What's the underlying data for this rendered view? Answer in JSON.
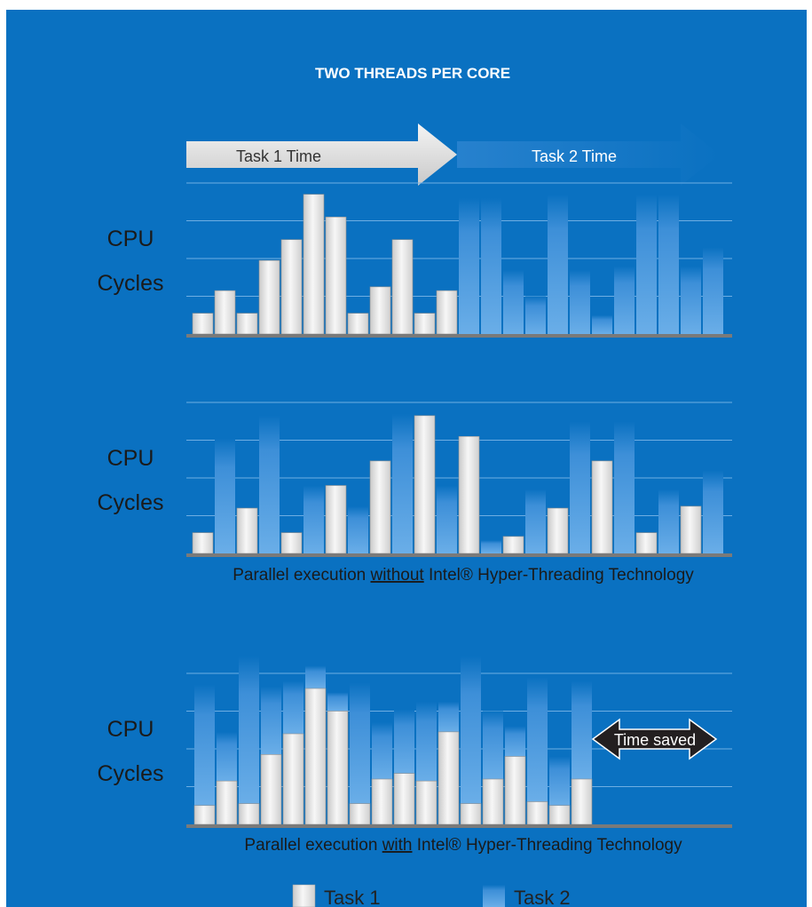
{
  "title": "TWO THREADS PER CORE",
  "colors": {
    "background": "#0a71c1",
    "task1_bar": "#e6e6e6",
    "task2_bar": "#4f9be0",
    "axis": "#7a7a7a",
    "gridline": "#6eaee3",
    "time_saved_arrow": "#231f20"
  },
  "legend": {
    "task1": "Task 1",
    "task2": "Task 2"
  },
  "chart_data": [
    {
      "type": "bar",
      "name": "sequential",
      "ylabel": [
        "CPU",
        "Cycles"
      ],
      "caption": null,
      "header_arrows": {
        "task1": "Task 1 Time",
        "task2": "Task 2 Time"
      },
      "ylim": [
        0,
        5
      ],
      "bars": [
        {
          "task": 1,
          "value": 0.55
        },
        {
          "task": 1,
          "value": 1.15
        },
        {
          "task": 1,
          "value": 0.55
        },
        {
          "task": 1,
          "value": 1.95
        },
        {
          "task": 1,
          "value": 2.5
        },
        {
          "task": 1,
          "value": 3.7
        },
        {
          "task": 1,
          "value": 3.1
        },
        {
          "task": 1,
          "value": 0.55
        },
        {
          "task": 1,
          "value": 1.25
        },
        {
          "task": 1,
          "value": 2.5
        },
        {
          "task": 1,
          "value": 0.55
        },
        {
          "task": 1,
          "value": 1.15
        },
        {
          "task": 2,
          "value": 3.6
        },
        {
          "task": 2,
          "value": 3.6
        },
        {
          "task": 2,
          "value": 1.7
        },
        {
          "task": 2,
          "value": 1.0
        },
        {
          "task": 2,
          "value": 3.7
        },
        {
          "task": 2,
          "value": 1.7
        },
        {
          "task": 2,
          "value": 0.5
        },
        {
          "task": 2,
          "value": 1.8
        },
        {
          "task": 2,
          "value": 3.7
        },
        {
          "task": 2,
          "value": 3.7
        },
        {
          "task": 2,
          "value": 1.8
        },
        {
          "task": 2,
          "value": 2.3
        }
      ]
    },
    {
      "type": "bar",
      "name": "parallel-without-ht",
      "ylabel": [
        "CPU",
        "Cycles"
      ],
      "caption": {
        "before": "Parallel execution ",
        "underlined": "without",
        "after": " Intel® Hyper-Threading Technology"
      },
      "ylim": [
        0,
        5
      ],
      "bars": [
        {
          "task": 1,
          "value": 0.55
        },
        {
          "task": 2,
          "value": 3.05
        },
        {
          "task": 1,
          "value": 1.2
        },
        {
          "task": 2,
          "value": 3.65
        },
        {
          "task": 1,
          "value": 0.55
        },
        {
          "task": 2,
          "value": 1.8
        },
        {
          "task": 1,
          "value": 1.8
        },
        {
          "task": 2,
          "value": 1.25
        },
        {
          "task": 1,
          "value": 2.45
        },
        {
          "task": 2,
          "value": 3.7
        },
        {
          "task": 1,
          "value": 3.65
        },
        {
          "task": 2,
          "value": 1.8
        },
        {
          "task": 1,
          "value": 3.1
        },
        {
          "task": 2,
          "value": 0.35
        },
        {
          "task": 1,
          "value": 0.45
        },
        {
          "task": 2,
          "value": 1.7
        },
        {
          "task": 1,
          "value": 1.2
        },
        {
          "task": 2,
          "value": 3.5
        },
        {
          "task": 1,
          "value": 2.45
        },
        {
          "task": 2,
          "value": 3.5
        },
        {
          "task": 1,
          "value": 0.55
        },
        {
          "task": 2,
          "value": 1.7
        },
        {
          "task": 1,
          "value": 1.25
        },
        {
          "task": 2,
          "value": 2.2
        }
      ]
    },
    {
      "type": "stacked-bar",
      "name": "parallel-with-ht",
      "ylabel": [
        "CPU",
        "Cycles"
      ],
      "caption": {
        "before": "Parallel execution ",
        "underlined": "with",
        "after": " Intel® Hyper-Threading Technology"
      },
      "annotation": "Time saved",
      "ylim": [
        0,
        5
      ],
      "bars": [
        {
          "task1": 0.5,
          "task2": 3.2
        },
        {
          "task1": 1.15,
          "task2": 1.3
        },
        {
          "task1": 0.55,
          "task2": 3.9
        },
        {
          "task1": 1.85,
          "task2": 1.8
        },
        {
          "task1": 2.4,
          "task2": 1.4
        },
        {
          "task1": 3.6,
          "task2": 0.6
        },
        {
          "task1": 3.0,
          "task2": 0.5
        },
        {
          "task1": 0.55,
          "task2": 3.2
        },
        {
          "task1": 1.2,
          "task2": 1.5
        },
        {
          "task1": 1.35,
          "task2": 1.7
        },
        {
          "task1": 1.15,
          "task2": 2.1
        },
        {
          "task1": 2.45,
          "task2": 0.8
        },
        {
          "task1": 0.55,
          "task2": 3.9
        },
        {
          "task1": 1.2,
          "task2": 1.8
        },
        {
          "task1": 1.8,
          "task2": 0.8
        },
        {
          "task1": 0.6,
          "task2": 3.3
        },
        {
          "task1": 0.5,
          "task2": 1.3
        },
        {
          "task1": 1.2,
          "task2": 2.6
        }
      ]
    }
  ]
}
